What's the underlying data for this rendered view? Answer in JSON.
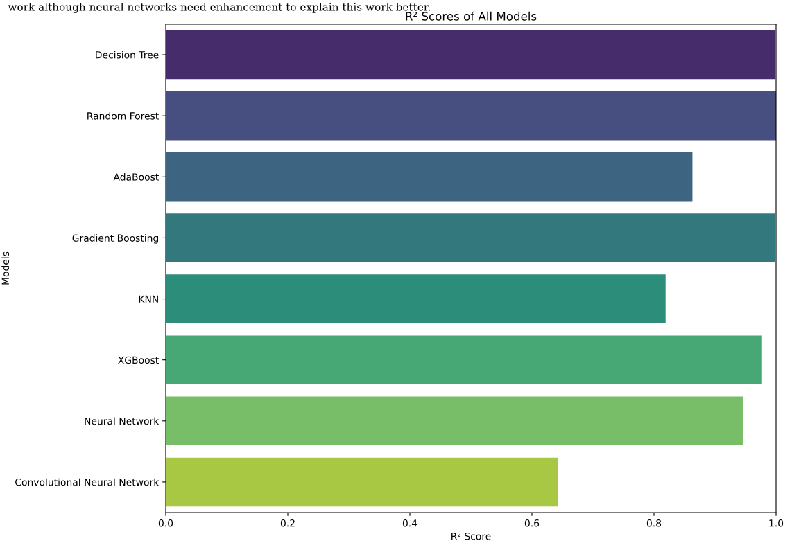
{
  "chart_data": {
    "type": "bar",
    "orientation": "horizontal",
    "title": "R² Scores of All Models",
    "xlabel": "R² Score",
    "ylabel": "Models",
    "annotations": [
      "work although neural networks need enhancement to explain this work better."
    ],
    "categories": [
      "Decision Tree",
      "Random Forest",
      "AdaBoost",
      "Gradient Boosting",
      "KNN",
      "XGBoost",
      "Neural Network",
      "Convolutional Neural Network"
    ],
    "values": [
      0.999,
      1.0,
      0.863,
      0.998,
      0.819,
      0.977,
      0.946,
      0.643
    ],
    "colors": [
      "#472c6c",
      "#464f80",
      "#3d6581",
      "#33787d",
      "#2d8d7b",
      "#47a876",
      "#78be68",
      "#a8c743"
    ],
    "xlim": [
      0,
      1
    ],
    "xticks": [
      {
        "value": 0,
        "label": "0.0"
      },
      {
        "value": 0.2,
        "label": "0.2"
      },
      {
        "value": 0.4,
        "label": "0.4"
      },
      {
        "value": 0.6,
        "label": "0.6"
      },
      {
        "value": 0.8,
        "label": "0.8"
      },
      {
        "value": 1,
        "label": "1.0"
      }
    ],
    "grid": false,
    "legend": false
  }
}
